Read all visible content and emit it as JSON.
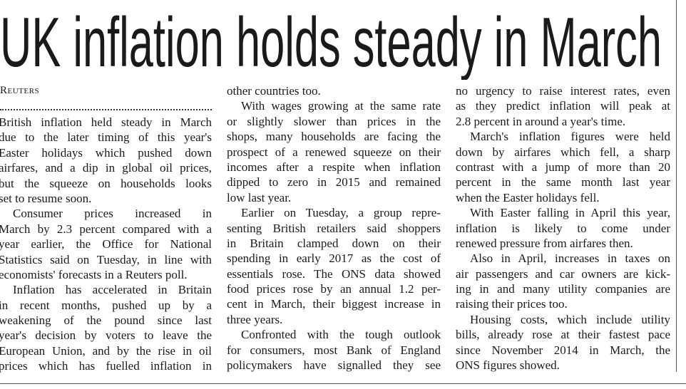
{
  "headline": "UK inflation holds steady in March",
  "byline": "Reuters",
  "columns": [
    {
      "paragraphs": [
        {
          "lines": [
            "British inflation held steady in March",
            "due to the later timing of this year's",
            "Easter holidays which pushed down",
            "airfares, and a dip in global oil prices,",
            "but the squeeze on households looks",
            "set to resume soon."
          ]
        },
        {
          "lines": [
            "Consumer prices increased in",
            "March by 2.3 percent compared with a",
            "year earlier, the Office for National",
            "Statistics said on Tuesday, in line with",
            "economists' forecasts in a Reuters poll."
          ]
        },
        {
          "lines": [
            "Inflation has accelerated in Britain",
            "in recent months, pushed up by a",
            "weakening of the pound since last",
            "year's decision by voters to leave the",
            "European Union, and by the rise in oil",
            "prices which has fuelled inflation in"
          ]
        }
      ]
    },
    {
      "paragraphs": [
        {
          "lines": [
            "other countries too."
          ]
        },
        {
          "lines": [
            "With wages growing at the same rate",
            "or slightly slower than prices in the",
            "shops, many households are facing the",
            "prospect of a renewed squeeze on their",
            "incomes after a respite when inflation",
            "dipped to zero in 2015 and remained",
            "low last year."
          ]
        },
        {
          "lines": [
            "Earlier on Tuesday, a group repre-",
            "senting British retailers said shoppers",
            "in Britain clamped down on their",
            "spending in early 2017 as the cost of",
            "essentials rose. The ONS data showed",
            "food prices rose by an annual 1.2 per-",
            "cent in March, their biggest increase in",
            "three years."
          ]
        },
        {
          "lines": [
            "Confronted with the tough outlook",
            "for consumers, most Bank of England",
            "policymakers have signalled they see"
          ]
        }
      ]
    },
    {
      "paragraphs": [
        {
          "lines": [
            "no urgency to raise interest rates, even",
            "as they predict inflation will peak at",
            "2.8 percent in around a year's time."
          ]
        },
        {
          "lines": [
            "March's inflation figures were held",
            "down by airfares which fell, a sharp",
            "contrast with a jump of more than 20",
            "percent in the same month last year",
            "when the Easter holidays fell."
          ]
        },
        {
          "lines": [
            "With Easter falling in April this year,",
            "inflation is likely to come under",
            "renewed pressure from airfares then."
          ]
        },
        {
          "lines": [
            "Also in April, increases in taxes on",
            "air passengers and car owners are kick-",
            "ing in and many utility companies are",
            "raising their prices too."
          ]
        },
        {
          "lines": [
            "Housing costs, which include utility",
            "bills, already rose at their fastest pace",
            "since November 2014 in March, the",
            "ONS figures showed."
          ]
        }
      ]
    }
  ]
}
